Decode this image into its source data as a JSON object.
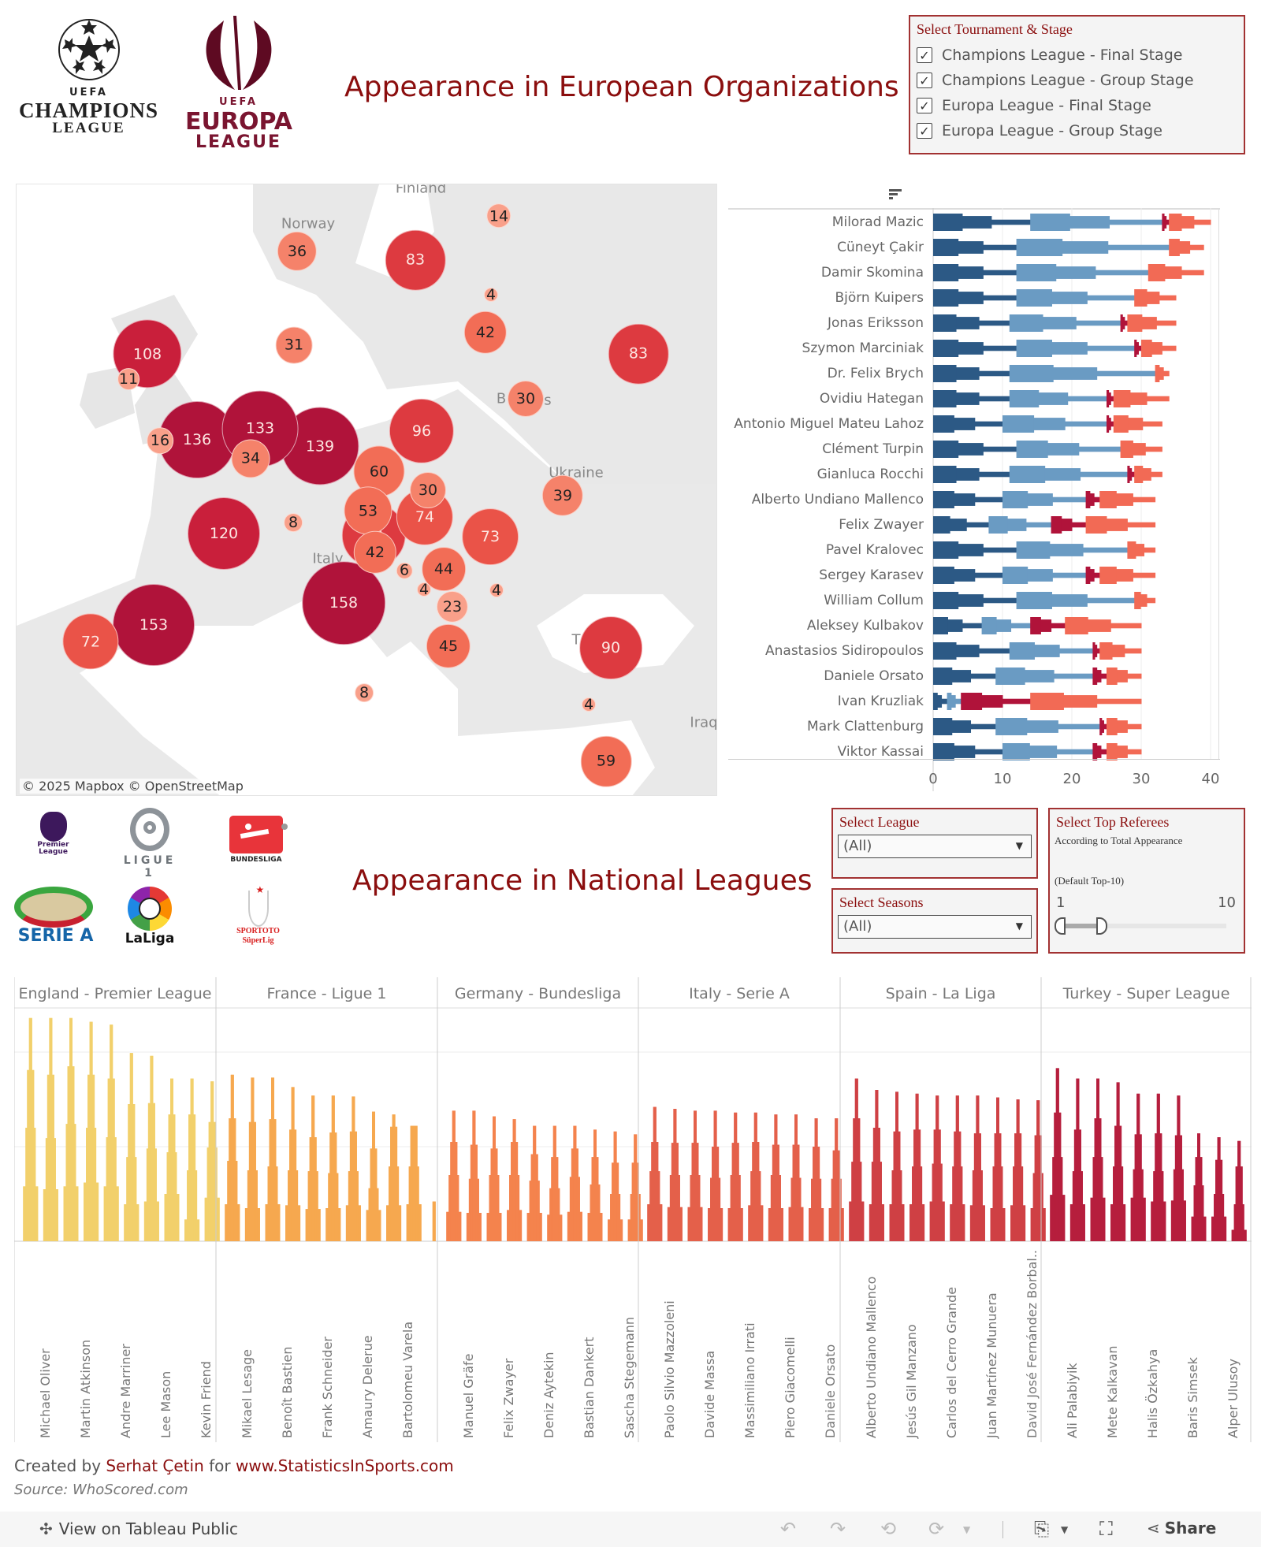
{
  "logos": {
    "champions_league": {
      "uefa": "UEFA",
      "line1": "CHAMPIONS",
      "line2": "LEAGUE"
    },
    "europa_league": {
      "uefa": "UEFA",
      "line1": "EUROPA",
      "line2": "LEAGUE"
    }
  },
  "european_title": "Appearance in European Organizations",
  "tournament_filter": {
    "title": "Select Tournament & Stage",
    "options": [
      {
        "label": "Champions League - Final Stage",
        "checked": true
      },
      {
        "label": "Champions League - Group Stage",
        "checked": true
      },
      {
        "label": "Europa League - Final Stage",
        "checked": true
      },
      {
        "label": "Europa League - Group Stage",
        "checked": true
      }
    ]
  },
  "map": {
    "attribution": "© 2025 Mapbox  © OpenStreetMap",
    "place_labels": [
      "Finland",
      "Norway",
      "Ukraine",
      "Italy",
      "Iraq",
      "B",
      "s",
      "T"
    ],
    "bubbles": [
      {
        "value": 14
      },
      {
        "value": 36
      },
      {
        "value": 83
      },
      {
        "value": 4
      },
      {
        "value": 42
      },
      {
        "value": 108
      },
      {
        "value": 11
      },
      {
        "value": 31
      },
      {
        "value": 83
      },
      {
        "value": 30
      },
      {
        "value": 16
      },
      {
        "value": 136
      },
      {
        "value": 133
      },
      {
        "value": 34
      },
      {
        "value": 139
      },
      {
        "value": 96
      },
      {
        "value": 60
      },
      {
        "value": 30
      },
      {
        "value": 39
      },
      {
        "value": 53
      },
      {
        "value": 74
      },
      {
        "value": 92
      },
      {
        "value": 42
      },
      {
        "value": 73
      },
      {
        "value": 8
      },
      {
        "value": 120
      },
      {
        "value": 6
      },
      {
        "value": 44
      },
      {
        "value": 4
      },
      {
        "value": 4
      },
      {
        "value": 23
      },
      {
        "value": 158
      },
      {
        "value": 153
      },
      {
        "value": 72
      },
      {
        "value": 45
      },
      {
        "value": 90
      },
      {
        "value": 8
      },
      {
        "value": 4
      },
      {
        "value": 59
      }
    ]
  },
  "national_title": "Appearance in National Leagues",
  "league_filter": {
    "title": "Select League",
    "value": "(All)"
  },
  "season_filter": {
    "title": "Select Seasons",
    "value": "(All)"
  },
  "top_referees_filter": {
    "title": "Select Top Referees",
    "subtitle": "According to Total Appearance",
    "note": "(Default Top-10)",
    "min_label": "1",
    "max_label": "10",
    "range_min": 1,
    "range_max": 10,
    "selected_low": 1,
    "selected_high": 3.3
  },
  "league_logos": [
    "Premier League",
    "LIGUE 1",
    "BUNDESLIGA",
    "SERIE A",
    "LaLiga",
    "SPORTOTO SüperLig"
  ],
  "footer": {
    "created_prefix": "Created by ",
    "author": "Serhat Çetin",
    "for_text": " for ",
    "site": "www.StatisticsInSports.com",
    "source": "Source: WhoScored.com"
  },
  "toolbar": {
    "view_on": "View on Tableau Public",
    "share": "Share"
  },
  "colors": {
    "accent": "#8b0e0e",
    "cl_final": "#2c5985",
    "cl_group": "#6a9bc3",
    "el_final": "#b0133a",
    "el_group": "#f26a55"
  },
  "chart_data": [
    {
      "type": "bar",
      "title": "Appearance in European Organizations (by referee)",
      "orientation": "horizontal-stacked",
      "xlabel": "",
      "xlim": [
        0,
        40
      ],
      "xticks": [
        "0",
        "10",
        "20",
        "30",
        "40"
      ],
      "series_names": [
        "Champions League - Final Stage",
        "Champions League - Group Stage",
        "Europa League - Final Stage",
        "Europa League - Group Stage"
      ],
      "categories": [
        "Milorad Mazic",
        "Cüneyt Çakir",
        "Damir Skomina",
        "Björn Kuipers",
        "Jonas Eriksson",
        "Szymon Marciniak",
        "Dr. Felix Brych",
        "Ovidiu Hategan",
        "Antonio Miguel Mateu Lahoz",
        "Clément Turpin",
        "Gianluca Rocchi",
        "Alberto Undiano Mallenco",
        "Felix Zwayer",
        "Pavel Kralovec",
        "Sergey Karasev",
        "William Collum",
        "Aleksey Kulbakov",
        "Anastasios Sidiropoulos",
        "Daniele Orsato",
        "Ivan Kruzliak",
        "Mark Clattenburg",
        "Viktor Kassai"
      ],
      "series": [
        {
          "name": "Champions League - Final Stage",
          "values": [
            14,
            12,
            12,
            12,
            11,
            12,
            11,
            11,
            10,
            12,
            11,
            10,
            8,
            12,
            10,
            12,
            7,
            11,
            9,
            2,
            9,
            10
          ]
        },
        {
          "name": "Champions League - Group Stage",
          "values": [
            19,
            22,
            19,
            17,
            16,
            17,
            21,
            14,
            15,
            15,
            17,
            12,
            9,
            16,
            12,
            17,
            7,
            12,
            14,
            2,
            15,
            13
          ]
        },
        {
          "name": "Europa League - Final Stage",
          "values": [
            1,
            0,
            0,
            0,
            1,
            1,
            0,
            1,
            1,
            0,
            1,
            2,
            5,
            0,
            2,
            0,
            5,
            1,
            2,
            10,
            1,
            2
          ]
        },
        {
          "name": "Europa League - Group Stage",
          "values": [
            6,
            5,
            8,
            6,
            7,
            5,
            2,
            8,
            7,
            6,
            4,
            8,
            10,
            4,
            8,
            3,
            11,
            6,
            5,
            16,
            5,
            5
          ]
        }
      ]
    },
    {
      "type": "bar",
      "title": "Appearance in National Leagues",
      "orientation": "vertical-tapered",
      "ylabel": "",
      "ylim": [
        0,
        250
      ],
      "grid": true,
      "note": "values estimated relative to gridlines (gridline spacing assumed 100)",
      "panels": [
        {
          "league": "England - Premier League",
          "color": "#f2d06b",
          "labels": [
            "Michael Oliver",
            "Martin Atkinson",
            "Andre Marriner",
            "Lee Mason",
            "Kevin Friend"
          ],
          "tiers": [
            [
              58,
              120,
              181,
              236
            ],
            [
              55,
              109,
              176,
              236
            ],
            [
              58,
              124,
              185,
              236
            ],
            [
              62,
              120,
              176,
              232
            ],
            [
              58,
              110,
              172,
              229
            ],
            [
              39,
              89,
              145,
              199
            ],
            [
              42,
              98,
              146,
              196
            ],
            [
              50,
              94,
              134,
              172
            ],
            [
              23,
              75,
              134,
              172
            ],
            [
              46,
              99,
              126,
              169
            ]
          ]
        },
        {
          "league": "France - Ligue 1",
          "color": "#f6a84f",
          "labels": [
            "Mikael Lesage",
            "Benoît Bastien",
            "Frank Schneider",
            "Amaury Delerue",
            "Bartolomeu Varela"
          ],
          "tiers": [
            [
              39,
              85,
              130,
              176
            ],
            [
              35,
              75,
              126,
              173
            ],
            [
              39,
              79,
              129,
              173
            ],
            [
              38,
              75,
              118,
              163
            ],
            [
              34,
              74,
              110,
              154
            ],
            [
              35,
              72,
              115,
              154
            ],
            [
              38,
              74,
              116,
              153
            ],
            [
              33,
              56,
              98,
              137
            ],
            [
              38,
              79,
              121,
              134
            ],
            [
              39,
              79,
              122,
              122
            ],
            [
              0,
              0,
              0,
              42
            ]
          ]
        },
        {
          "league": "Germany - Bundesliga",
          "color": "#f4834d",
          "labels": [
            "Manuel Gräfe",
            "Felix Zwayer",
            "Deniz Aytekin",
            "Bastian Dankert",
            "Sascha Stegemann"
          ],
          "tiers": [
            [
              31,
              70,
              105,
              138
            ],
            [
              30,
              66,
              102,
              138
            ],
            [
              30,
              70,
              98,
              132
            ],
            [
              33,
              70,
              105,
              129
            ],
            [
              30,
              64,
              92,
              122
            ],
            [
              28,
              56,
              89,
              122
            ],
            [
              31,
              68,
              98,
              122
            ],
            [
              30,
              60,
              89,
              118
            ],
            [
              23,
              50,
              83,
              116
            ],
            [
              23,
              50,
              83,
              113
            ]
          ]
        },
        {
          "league": "Italy - Serie A",
          "color": "#e4604a",
          "labels": [
            "Paolo Silvio Mazzoleni",
            "Davide Massa",
            "Massimiliano Irrati",
            "Piero Giacomelli",
            "Daniele Orsato"
          ],
          "tiers": [
            [
              39,
              74,
              105,
              142
            ],
            [
              36,
              70,
              104,
              140
            ],
            [
              36,
              70,
              104,
              138
            ],
            [
              35,
              67,
              100,
              138
            ],
            [
              35,
              70,
              104,
              136
            ],
            [
              38,
              74,
              105,
              136
            ],
            [
              35,
              70,
              102,
              134
            ],
            [
              36,
              67,
              102,
              134
            ],
            [
              35,
              66,
              100,
              130
            ],
            [
              35,
              66,
              96,
              130
            ]
          ]
        },
        {
          "league": "Spain - La Liga",
          "color": "#cf4044",
          "labels": [
            "Alberto Undiano Mallenco",
            "Jesús Gil Manzano",
            "Carlos del Cerro Grande",
            "Juan Martínez Munuera",
            "David José Fernández Borbal.."
          ],
          "tiers": [
            [
              42,
              84,
              130,
              172
            ],
            [
              39,
              84,
              120,
              160
            ],
            [
              39,
              75,
              116,
              158
            ],
            [
              39,
              79,
              118,
              156
            ],
            [
              42,
              82,
              118,
              154
            ],
            [
              39,
              79,
              116,
              154
            ],
            [
              38,
              75,
              114,
              154
            ],
            [
              35,
              79,
              114,
              152
            ],
            [
              38,
              79,
              114,
              150
            ],
            [
              35,
              72,
              112,
              149
            ]
          ]
        },
        {
          "league": "Turkey - Super League",
          "color": "#b61e3d",
          "labels": [
            "Ali Palabiyik",
            "Mete Kalkavan",
            "Halis Özkahya",
            "Baris Simsek",
            "Alper Ulusoy"
          ],
          "tiers": [
            [
              49,
              89,
              136,
              183
            ],
            [
              39,
              74,
              118,
              172
            ],
            [
              46,
              89,
              130,
              172
            ],
            [
              39,
              79,
              122,
              168
            ],
            [
              46,
              76,
              113,
              156
            ],
            [
              42,
              74,
              114,
              156
            ],
            [
              43,
              76,
              112,
              154
            ],
            [
              26,
              59,
              89,
              114
            ],
            [
              26,
              50,
              86,
              110
            ],
            [
              12,
              39,
              79,
              106
            ]
          ]
        }
      ]
    }
  ]
}
